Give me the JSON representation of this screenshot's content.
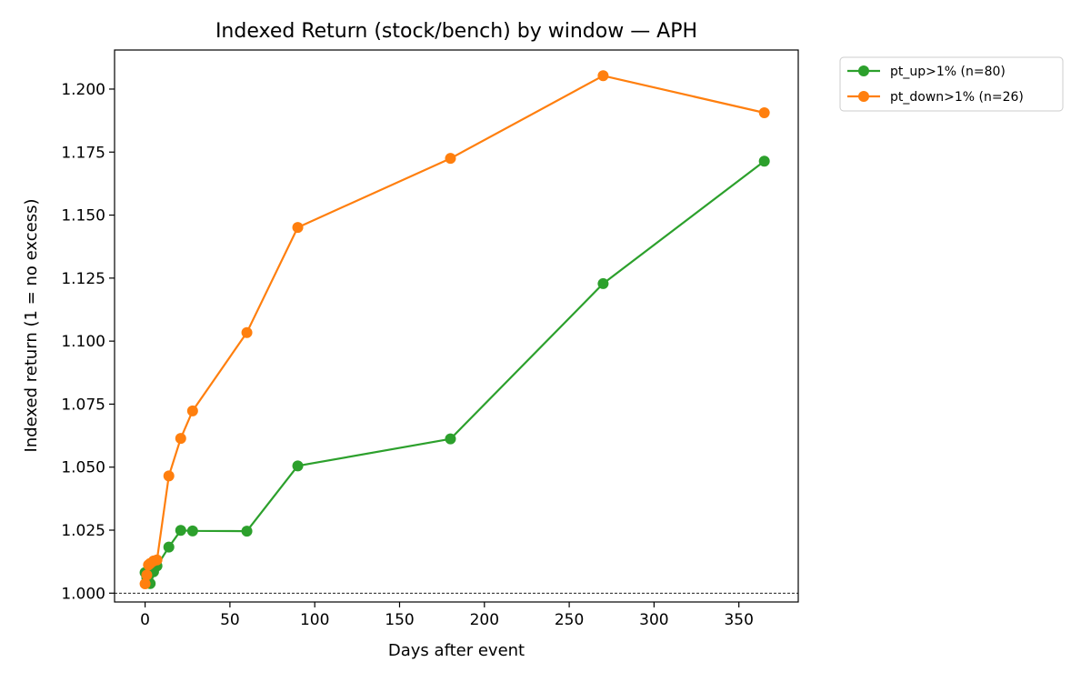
{
  "chart_data": {
    "type": "line",
    "title": "Indexed Return (stock/bench) by window — APH",
    "xlabel": "Days after event",
    "ylabel": "Indexed return (1 = no excess)",
    "xlim": [
      -18,
      385
    ],
    "ylim": [
      0.9965,
      1.2155
    ],
    "x_ticks": [
      0,
      50,
      100,
      150,
      200,
      250,
      300,
      350
    ],
    "y_ticks": [
      1.0,
      1.025,
      1.05,
      1.075,
      1.1,
      1.125,
      1.15,
      1.175,
      1.2
    ],
    "reference_line": {
      "y": 1.0,
      "style": "dashed",
      "color": "#000000"
    },
    "legend_position": "outside top-right",
    "grid": false,
    "series": [
      {
        "name": "pt_up>1% (n=80)",
        "color": "#2ca02c",
        "x": [
          0,
          1,
          2,
          3,
          5,
          7,
          14,
          21,
          28,
          60,
          90,
          180,
          270,
          365
        ],
        "y": [
          1.0082,
          1.0062,
          1.0068,
          1.0038,
          1.0085,
          1.0108,
          1.0183,
          1.0249,
          1.0247,
          1.0246,
          1.0505,
          1.0612,
          1.1228,
          1.1714
        ]
      },
      {
        "name": "pt_down>1% (n=26)",
        "color": "#ff7f0e",
        "x": [
          0,
          1,
          2,
          3,
          5,
          7,
          14,
          21,
          28,
          60,
          90,
          180,
          270,
          365
        ],
        "y": [
          1.0037,
          1.0072,
          1.0112,
          1.0118,
          1.0128,
          1.0132,
          1.0465,
          1.0614,
          1.0723,
          1.1034,
          1.1451,
          1.1725,
          1.2053,
          1.1906
        ]
      }
    ]
  }
}
